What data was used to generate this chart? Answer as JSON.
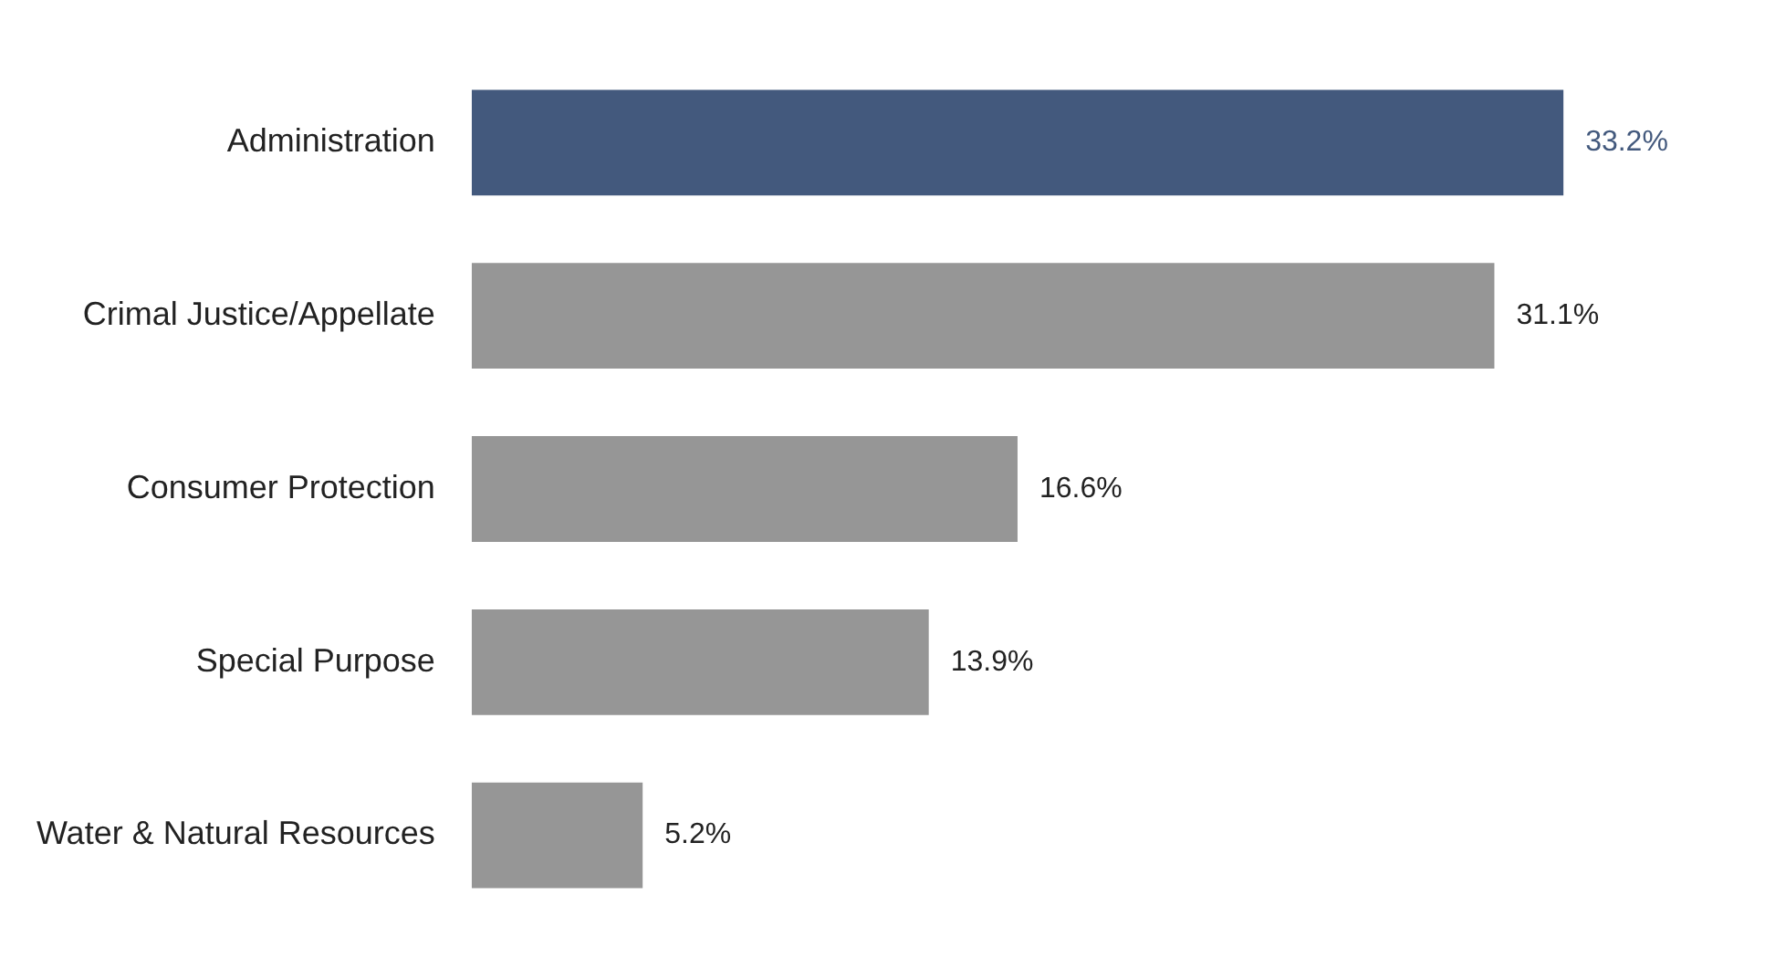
{
  "chart_data": {
    "type": "bar",
    "orientation": "horizontal",
    "categories": [
      "Administration",
      "Crimal Justice/Appellate",
      "Consumer Protection",
      "Special Purpose",
      "Water & Natural Resources"
    ],
    "values": [
      33.2,
      31.1,
      16.6,
      13.9,
      5.2
    ],
    "colors": [
      "#43597d",
      "#969696",
      "#969696",
      "#969696",
      "#969696"
    ],
    "value_labels": [
      "33.2%",
      "31.1%",
      "16.6%",
      "13.9%",
      "5.2%"
    ],
    "legend": false
  }
}
